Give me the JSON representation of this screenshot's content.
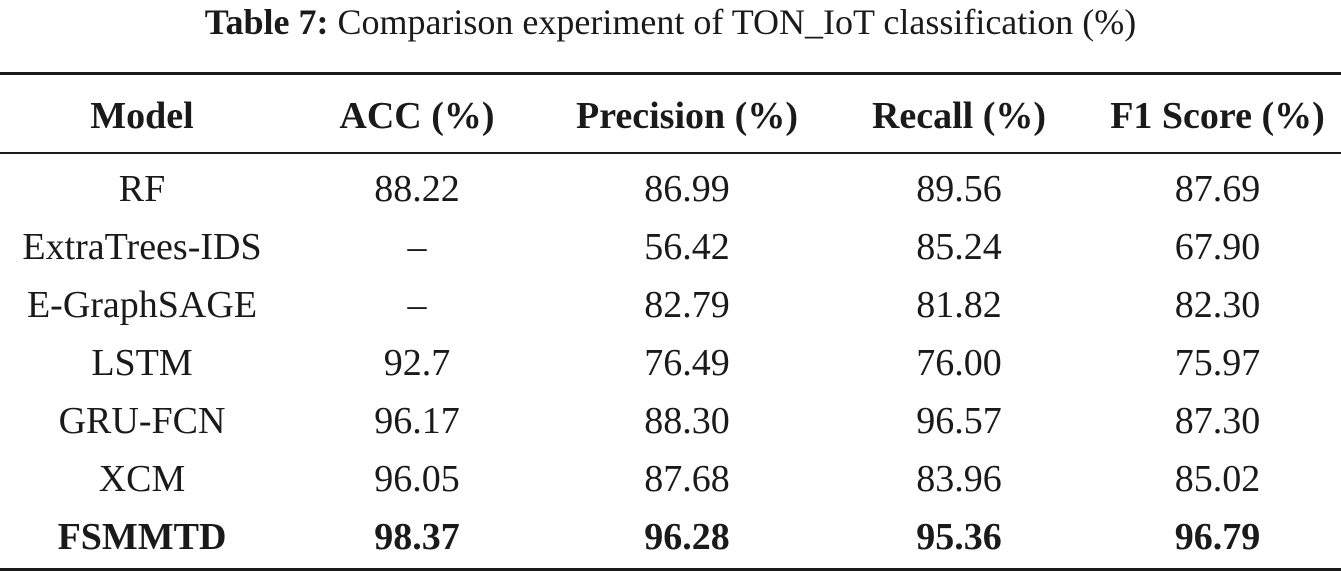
{
  "caption": {
    "label": "Table 7:",
    "text": "Comparison experiment of TON_IoT classification (%)"
  },
  "table": {
    "headers": [
      "Model",
      "ACC (%)",
      "Precision (%)",
      "Recall (%)",
      "F1 Score (%)"
    ],
    "rows": [
      [
        "RF",
        "88.22",
        "86.99",
        "89.56",
        "87.69"
      ],
      [
        "ExtraTrees-IDS",
        "–",
        "56.42",
        "85.24",
        "67.90"
      ],
      [
        "E-GraphSAGE",
        "–",
        "82.79",
        "81.82",
        "82.30"
      ],
      [
        "LSTM",
        "92.7",
        "76.49",
        "76.00",
        "75.97"
      ],
      [
        "GRU-FCN",
        "96.17",
        "88.30",
        "96.57",
        "87.30"
      ],
      [
        "XCM",
        "96.05",
        "87.68",
        "83.96",
        "85.02"
      ],
      [
        "FSMMTD",
        "98.37",
        "96.28",
        "95.36",
        "96.79"
      ]
    ]
  }
}
